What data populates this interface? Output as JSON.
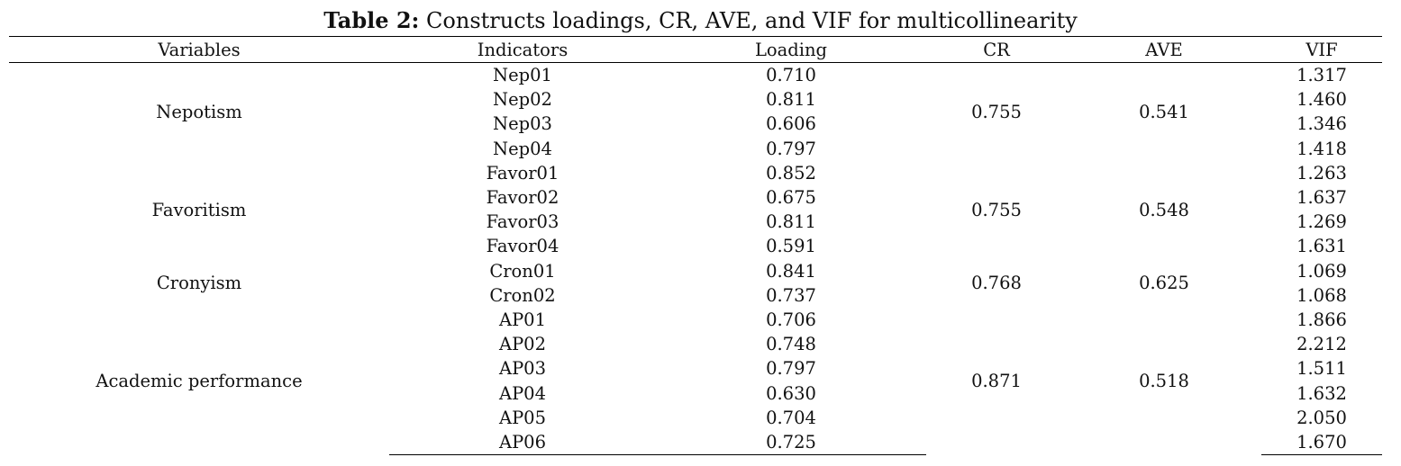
{
  "caption": {
    "label": "Table 2:",
    "text": "Constructs loadings, CR, AVE, and VIF for multicollinearity"
  },
  "headers": [
    "Variables",
    "Indicators",
    "Loading",
    "CR",
    "AVE",
    "VIF"
  ],
  "groups": [
    {
      "variable": "Nepotism",
      "cr": "0.755",
      "ave": "0.541",
      "rows": [
        {
          "indicator": "Nep01",
          "loading": "0.710",
          "vif": "1.317"
        },
        {
          "indicator": "Nep02",
          "loading": "0.811",
          "vif": "1.460"
        },
        {
          "indicator": "Nep03",
          "loading": "0.606",
          "vif": "1.346"
        },
        {
          "indicator": "Nep04",
          "loading": "0.797",
          "vif": "1.418"
        }
      ]
    },
    {
      "variable": "Favoritism",
      "cr": "0.755",
      "ave": "0.548",
      "rows": [
        {
          "indicator": "Favor01",
          "loading": "0.852",
          "vif": "1.263"
        },
        {
          "indicator": "Favor02",
          "loading": "0.675",
          "vif": "1.637"
        },
        {
          "indicator": "Favor03",
          "loading": "0.811",
          "vif": "1.269"
        },
        {
          "indicator": "Favor04",
          "loading": "0.591",
          "vif": "1.631"
        }
      ]
    },
    {
      "variable": "Cronyism",
      "cr": "0.768",
      "ave": "0.625",
      "rows": [
        {
          "indicator": "Cron01",
          "loading": "0.841",
          "vif": "1.069"
        },
        {
          "indicator": "Cron02",
          "loading": "0.737",
          "vif": "1.068"
        }
      ]
    },
    {
      "variable": "Academic performance",
      "cr": "0.871",
      "ave": "0.518",
      "rows": [
        {
          "indicator": "AP01",
          "loading": "0.706",
          "vif": "1.866"
        },
        {
          "indicator": "AP02",
          "loading": "0.748",
          "vif": "2.212"
        },
        {
          "indicator": "AP03",
          "loading": "0.797",
          "vif": "1.511"
        },
        {
          "indicator": "AP04",
          "loading": "0.630",
          "vif": "1.632"
        },
        {
          "indicator": "AP05",
          "loading": "0.704",
          "vif": "2.050"
        },
        {
          "indicator": "AP06",
          "loading": "0.725",
          "vif": "1.670"
        }
      ]
    }
  ]
}
